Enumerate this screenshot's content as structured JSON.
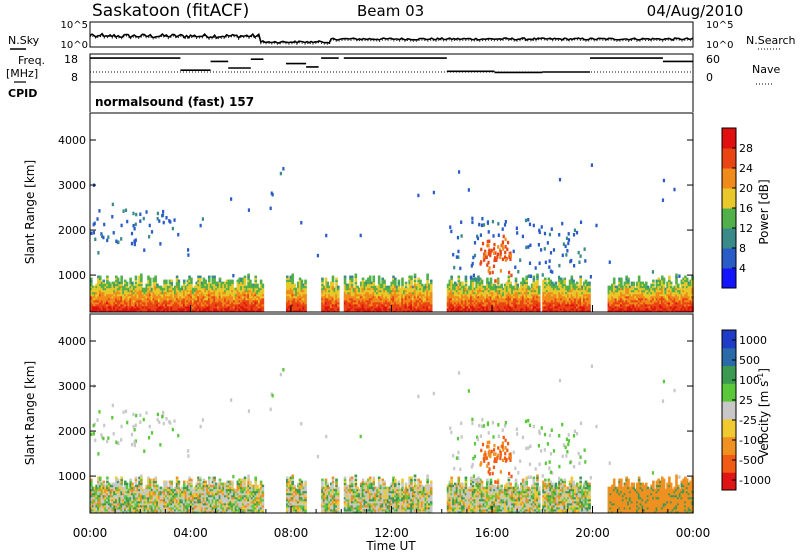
{
  "header": {
    "station": "Saskatoon (fitACF)",
    "beam": "Beam 03",
    "date": "04/Aug/2010",
    "cpid_label": "CPID",
    "cpid_value": "normalsound (fast) 157"
  },
  "chart_data": [
    {
      "id": "noise-panel",
      "type": "line",
      "left_label": "N.Sky",
      "right_label": "N.Search",
      "left_ticks": [
        "10^5",
        "10^0"
      ],
      "right_ticks": [
        "10^5",
        "10^0"
      ]
    },
    {
      "id": "freq-nave-panel",
      "type": "line",
      "left_label_1": "Freq.",
      "left_label_2": "[MHz]",
      "right_label": "Nave",
      "left_ticks": [
        18,
        8
      ],
      "right_ticks": [
        60,
        0
      ],
      "freq_segments": [
        {
          "x0": 0,
          "x1": 3.6,
          "y": 17.5
        },
        {
          "x0": 3.6,
          "x1": 4.8,
          "y": 12
        },
        {
          "x0": 4.8,
          "x1": 5.5,
          "y": 16
        },
        {
          "x0": 5.5,
          "x1": 6.4,
          "y": 13
        },
        {
          "x0": 6.4,
          "x1": 6.9,
          "y": 17
        },
        {
          "x0": 7.8,
          "x1": 8.6,
          "y": 15
        },
        {
          "x0": 8.6,
          "x1": 9.1,
          "y": 13.5
        },
        {
          "x0": 9.2,
          "x1": 9.9,
          "y": 17.5
        },
        {
          "x0": 10.1,
          "x1": 14.2,
          "y": 17.5
        },
        {
          "x0": 14.2,
          "x1": 14.6,
          "y": 11.5
        },
        {
          "x0": 14.6,
          "x1": 16.1,
          "y": 11.5
        },
        {
          "x0": 16.1,
          "x1": 18.0,
          "y": 11.0
        },
        {
          "x0": 18.0,
          "x1": 19.9,
          "y": 11.2
        },
        {
          "x0": 19.9,
          "x1": 20.6,
          "y": 17.5
        },
        {
          "x0": 20.6,
          "x1": 22.8,
          "y": 17.5
        },
        {
          "x0": 22.8,
          "x1": 24,
          "y": 16
        }
      ],
      "nave_dotted_value": 20
    },
    {
      "id": "power-panel",
      "type": "heatmap",
      "ylabel": "Slant Range [km]",
      "xlim": [
        0,
        24
      ],
      "ylim": [
        180,
        4600
      ],
      "yticks": [
        1000,
        2000,
        3000,
        4000
      ],
      "colorbar_label": "Power [dB]",
      "colorbar_ticks": [
        4,
        8,
        12,
        16,
        20,
        24,
        28
      ],
      "colorbar_range": [
        0,
        32
      ],
      "colorbar_colors": [
        "#1414ff",
        "#2a5cc8",
        "#3a8a8a",
        "#52b04a",
        "#e8c82a",
        "#f08a1a",
        "#e84414",
        "#e01010"
      ]
    },
    {
      "id": "velocity-panel",
      "type": "heatmap",
      "ylabel": "Slant Range [km]",
      "xlabel": "Time UT",
      "xlim": [
        0,
        24
      ],
      "ylim": [
        180,
        4600
      ],
      "yticks": [
        1000,
        2000,
        3000,
        4000
      ],
      "xticks": [
        "00:00",
        "04:00",
        "08:00",
        "12:00",
        "16:00",
        "20:00",
        "00:00"
      ],
      "colorbar_label": "Velocity [m s",
      "colorbar_label_sup": "-1",
      "colorbar_label_end": "]",
      "colorbar_ticks": [
        "1000",
        "500",
        "100",
        "25",
        "-25",
        "-100",
        "-500",
        "-1000"
      ],
      "colorbar_colors": [
        "#1f3cc8",
        "#2a6aa8",
        "#3c9a50",
        "#5ac83a",
        "#c8c8c8",
        "#f0c830",
        "#f09020",
        "#f05a14",
        "#e01414"
      ]
    }
  ]
}
